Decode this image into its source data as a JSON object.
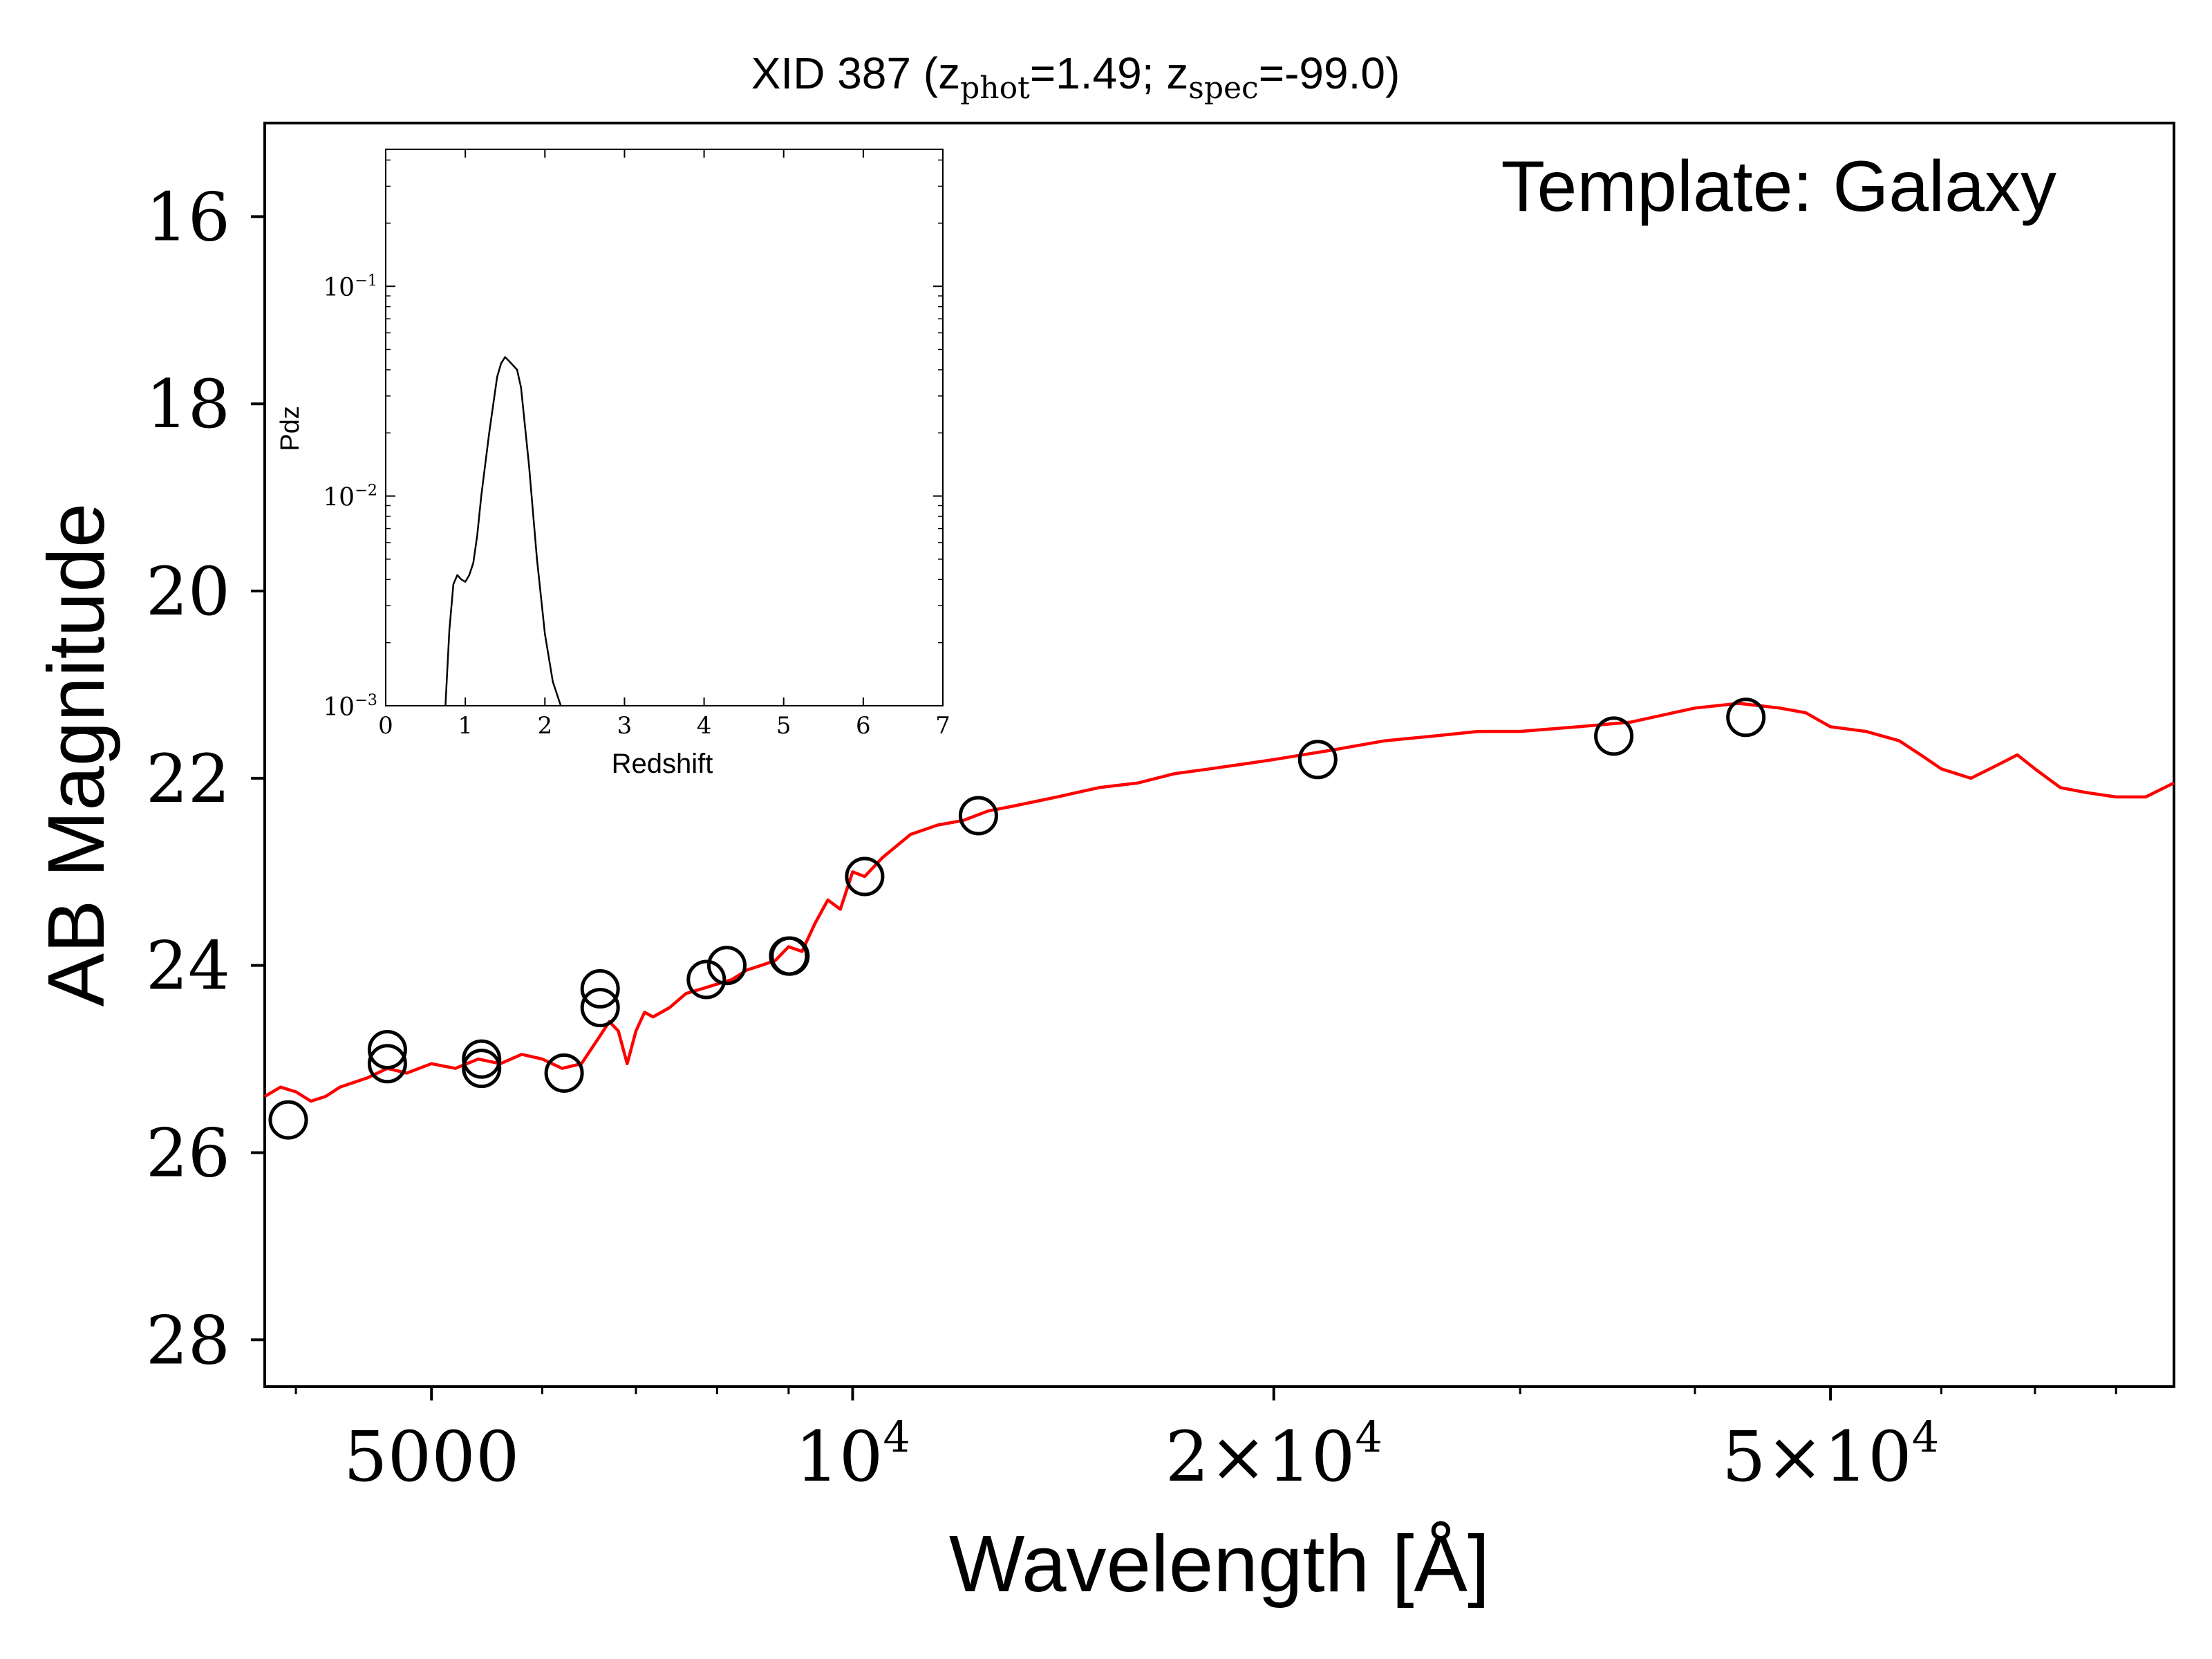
{
  "chart_data": [
    {
      "type": "line",
      "title": {
        "prefix": "XID 387 (z",
        "sub1": "phot",
        "mid": "=1.49; z",
        "sub2": "spec",
        "suffix": "=-99.0)"
      },
      "xlabel": "Wavelength [Å]",
      "ylabel": "AB Magnitude",
      "annotation": "Template: Galaxy",
      "x_scale": "log",
      "xlim": [
        3800,
        88000
      ],
      "ylim": [
        28.5,
        15.0
      ],
      "y_inverted": true,
      "xticks": [
        {
          "value": 5000,
          "base": "5000",
          "exp": ""
        },
        {
          "value": 10000,
          "base": "10",
          "exp": "4"
        },
        {
          "value": 20000,
          "base": "2×10",
          "exp": "4"
        },
        {
          "value": 50000,
          "base": "5×10",
          "exp": "4"
        }
      ],
      "xminor_ticks": [
        4000,
        6000,
        7000,
        8000,
        9000,
        30000,
        40000,
        60000,
        70000,
        80000
      ],
      "yticks": [
        16,
        18,
        20,
        22,
        24,
        26,
        28
      ],
      "series": [
        {
          "kind": "line",
          "color": "#ff0000",
          "x": [
            3800,
            3900,
            4000,
            4100,
            4200,
            4300,
            4400,
            4500,
            4650,
            4800,
            5000,
            5200,
            5400,
            5600,
            5800,
            6000,
            6200,
            6400,
            6600,
            6700,
            6800,
            6900,
            7000,
            7100,
            7200,
            7400,
            7600,
            7800,
            8000,
            8200,
            8400,
            8600,
            8800,
            9000,
            9200,
            9400,
            9600,
            9800,
            10000,
            10200,
            10500,
            11000,
            11500,
            12000,
            12500,
            13000,
            14000,
            15000,
            16000,
            17000,
            18000,
            19000,
            20000,
            22000,
            24000,
            26000,
            28000,
            30000,
            33000,
            36000,
            40000,
            43000,
            46000,
            48000,
            50000,
            53000,
            56000,
            58000,
            60000,
            63000,
            66000,
            68000,
            70000,
            73000,
            76000,
            80000,
            84000,
            88000
          ],
          "y": [
            25.4,
            25.3,
            25.35,
            25.45,
            25.4,
            25.3,
            25.25,
            25.2,
            25.1,
            25.15,
            25.05,
            25.1,
            25.0,
            25.05,
            24.95,
            25.0,
            25.1,
            25.05,
            24.75,
            24.6,
            24.7,
            25.05,
            24.7,
            24.5,
            24.55,
            24.45,
            24.3,
            24.25,
            24.2,
            24.15,
            24.05,
            24.0,
            23.95,
            23.8,
            23.85,
            23.55,
            23.3,
            23.4,
            23.0,
            23.05,
            22.85,
            22.6,
            22.5,
            22.45,
            22.35,
            22.3,
            22.2,
            22.1,
            22.05,
            21.95,
            21.9,
            21.85,
            21.8,
            21.7,
            21.6,
            21.55,
            21.5,
            21.5,
            21.45,
            21.4,
            21.25,
            21.2,
            21.25,
            21.3,
            21.45,
            21.5,
            21.6,
            21.75,
            21.9,
            22.0,
            21.85,
            21.75,
            21.9,
            22.1,
            22.15,
            22.2,
            22.2,
            22.05
          ]
        },
        {
          "kind": "scatter",
          "marker": "open-circle",
          "color": "#000000",
          "x": [
            3950,
            4650,
            4650,
            5430,
            5430,
            6220,
            6600,
            6600,
            7860,
            8130,
            9000,
            9020,
            10200,
            12300,
            21500,
            35000,
            43500
          ],
          "y": [
            25.65,
            25.05,
            24.9,
            25.1,
            25.0,
            25.15,
            24.45,
            24.25,
            24.15,
            24.0,
            23.9,
            23.9,
            23.05,
            22.4,
            21.8,
            21.55,
            21.35
          ]
        }
      ]
    },
    {
      "type": "line",
      "inset": true,
      "xlabel": "Redshift",
      "ylabel": "Pdz",
      "y_scale": "log",
      "xlim": [
        0,
        7
      ],
      "ylim": [
        0.001,
        0.45
      ],
      "xticks": [
        0,
        1,
        2,
        3,
        4,
        5,
        6,
        7
      ],
      "yticks": [
        {
          "value": 0.001,
          "base": "10",
          "exp": "−3"
        },
        {
          "value": 0.01,
          "base": "10",
          "exp": "−2"
        },
        {
          "value": 0.1,
          "base": "10",
          "exp": "−1"
        }
      ],
      "series": [
        {
          "kind": "line",
          "color": "#000000",
          "x": [
            0.75,
            0.8,
            0.85,
            0.9,
            0.95,
            1.0,
            1.05,
            1.1,
            1.15,
            1.2,
            1.3,
            1.4,
            1.45,
            1.5,
            1.55,
            1.6,
            1.65,
            1.7,
            1.8,
            1.9,
            2.0,
            2.1,
            2.2
          ],
          "y": [
            0.001,
            0.0023,
            0.0038,
            0.0042,
            0.004,
            0.0039,
            0.0042,
            0.0048,
            0.0065,
            0.01,
            0.02,
            0.037,
            0.043,
            0.046,
            0.044,
            0.042,
            0.04,
            0.033,
            0.014,
            0.005,
            0.0022,
            0.0013,
            0.001
          ]
        }
      ]
    }
  ]
}
